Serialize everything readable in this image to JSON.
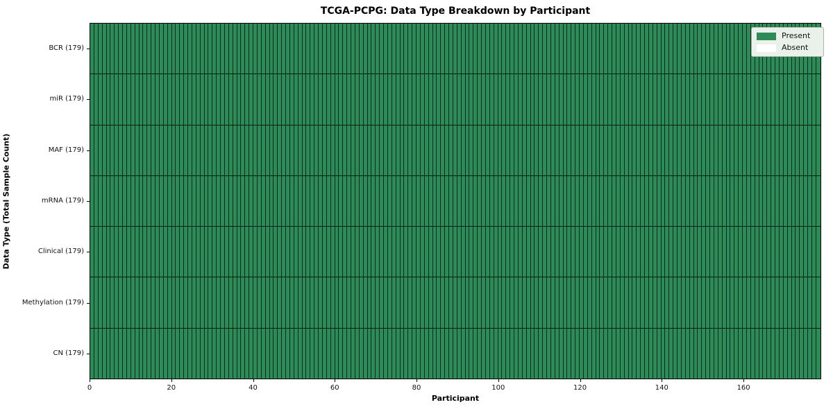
{
  "chart_data": {
    "type": "heatmap",
    "title": "TCGA-PCPG: Data Type Breakdown by Participant",
    "xlabel": "Participant",
    "ylabel": "Data Type (Total Sample Count)",
    "n_participants": 179,
    "xlim": [
      0,
      179
    ],
    "x_ticks": [
      0,
      20,
      40,
      60,
      80,
      100,
      120,
      140,
      160
    ],
    "grid": "cell-borders",
    "rows": [
      {
        "name": "BCR",
        "total": 179,
        "label": "BCR (179)",
        "present_count": 179
      },
      {
        "name": "miR",
        "total": 179,
        "label": "miR (179)",
        "present_count": 179
      },
      {
        "name": "MAF",
        "total": 179,
        "label": "MAF (179)",
        "present_count": 179
      },
      {
        "name": "mRNA",
        "total": 179,
        "label": "mRNA (179)",
        "present_count": 179
      },
      {
        "name": "Clinical",
        "total": 179,
        "label": "Clinical (179)",
        "present_count": 179
      },
      {
        "name": "Methylation",
        "total": 179,
        "label": "Methylation (179)",
        "present_count": 179
      },
      {
        "name": "CN",
        "total": 179,
        "label": "CN (179)",
        "present_count": 179
      }
    ],
    "legend": {
      "position": "upper right",
      "entries": [
        {
          "label": "Present",
          "color": "#2e8b57"
        },
        {
          "label": "Absent",
          "color": "#ffffff"
        }
      ]
    },
    "colors": {
      "present": "#2e8b57",
      "absent": "#ffffff",
      "cell_border": "rgba(0,10,5,0.72)",
      "row_separator": "rgba(0,0,0,0.78)",
      "spine": "#000000"
    }
  }
}
